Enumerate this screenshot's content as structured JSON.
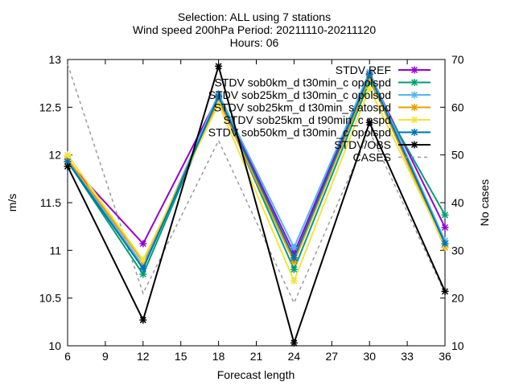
{
  "chart_data": {
    "type": "line",
    "title_lines": [
      "Selection: ALL using     7 stations",
      "Wind speed 200hPa   Period: 20211110-20211120",
      "Hours: 06"
    ],
    "xlabel": "Forecast length",
    "ylabel": "m/s",
    "y2label": "No cases",
    "x": [
      6,
      12,
      18,
      24,
      30,
      36
    ],
    "xlim": [
      6,
      36
    ],
    "ylim": [
      10,
      13
    ],
    "y2lim": [
      10,
      70
    ],
    "x_ticks": [
      "6",
      "9",
      "12",
      "15",
      "18",
      "21",
      "24",
      "27",
      "30",
      "33",
      "36"
    ],
    "y_ticks": [
      "10",
      "10.5",
      "11",
      "11.5",
      "12",
      "12.5",
      "13"
    ],
    "y2_ticks": [
      "10",
      "20",
      "30",
      "40",
      "50",
      "60",
      "70"
    ],
    "grid": false,
    "legend_position": "top-right",
    "series": [
      {
        "name": "STDV REF",
        "color": "#9400d3",
        "values": [
          11.93,
          11.07,
          12.62,
          10.97,
          12.85,
          11.24
        ]
      },
      {
        "name": "STDV sob0km_d t30min_c opolspd",
        "color": "#009e73",
        "values": [
          11.93,
          10.75,
          12.6,
          10.8,
          12.77,
          11.37
        ]
      },
      {
        "name": "STDV sob25km_d t30min_c opolspd",
        "color": "#56b4e9",
        "values": [
          11.95,
          10.84,
          12.64,
          11.03,
          12.87,
          11.1
        ]
      },
      {
        "name": "STDV sob25km_d t30min_s atospd",
        "color": "#e69f00",
        "values": [
          11.96,
          10.88,
          12.57,
          10.88,
          12.81,
          11.03
        ]
      },
      {
        "name": "STDV sob25km_d t90min_c nspd",
        "color": "#f0e442",
        "values": [
          12.0,
          10.9,
          12.53,
          10.68,
          12.7,
          11.05
        ]
      },
      {
        "name": "STDV sob50km_d t30min_c opolspd",
        "color": "#0072b2",
        "values": [
          11.93,
          10.81,
          12.61,
          10.92,
          12.84,
          11.07
        ]
      },
      {
        "name": "STDV/OBS",
        "color": "#000000",
        "values": [
          11.88,
          10.27,
          12.93,
          10.03,
          12.34,
          10.57
        ]
      }
    ],
    "cases_series": {
      "name": "CASES",
      "color": "#999999",
      "values": [
        69,
        21,
        53,
        19,
        55,
        21
      ]
    }
  }
}
